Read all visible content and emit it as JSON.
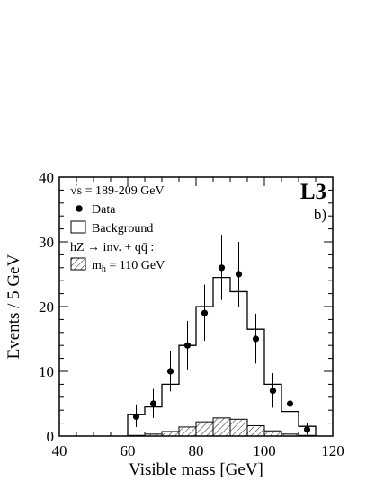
{
  "chart_data": {
    "type": "histogram",
    "xlabel": "Visible mass  [GeV]",
    "ylabel": "Events / 5 GeV",
    "xlim": [
      40,
      120
    ],
    "ylim": [
      0,
      40
    ],
    "x_ticks": [
      40,
      60,
      80,
      100,
      120
    ],
    "y_ticks": [
      0,
      10,
      20,
      30,
      40
    ],
    "x_tick_labels": [
      "40",
      "60",
      "80",
      "100",
      "120"
    ],
    "y_tick_labels": [
      "0",
      "10",
      "20",
      "30",
      "40"
    ],
    "experiment_label": "L3",
    "panel_label": "b)",
    "legend": {
      "energy_label": "√s = 189-209 GeV",
      "data_label": "Data",
      "background_label": "Background",
      "signal_process_label": "hZ → inv. + qq̄ :",
      "signal_mass_label": "m",
      "signal_mass_subscript": "h",
      "signal_mass_value": " = 110 GeV"
    },
    "background": {
      "bin_edges": [
        60,
        65,
        70,
        75,
        80,
        85,
        90,
        95,
        100,
        105,
        110,
        115
      ],
      "values": [
        3.3,
        4.5,
        8.0,
        14.0,
        20.0,
        24.5,
        22.3,
        16.5,
        8.0,
        3.8,
        1.5
      ]
    },
    "signal": {
      "bin_edges": [
        60,
        65,
        70,
        75,
        80,
        85,
        90,
        95,
        100,
        105,
        110,
        115
      ],
      "values": [
        0.1,
        0.3,
        0.7,
        1.4,
        2.2,
        2.8,
        2.6,
        1.6,
        0.8,
        0.3,
        0.1
      ]
    },
    "data": {
      "x": [
        62.5,
        67.5,
        72.5,
        77.5,
        82.5,
        87.5,
        92.5,
        97.5,
        102.5,
        107.5,
        112.5
      ],
      "y": [
        3,
        5,
        10,
        14,
        19,
        26,
        25,
        15,
        7,
        5,
        1
      ],
      "err_up": [
        1.9,
        2.3,
        3.2,
        3.8,
        4.4,
        5.1,
        5.0,
        3.9,
        2.7,
        2.3,
        1.0
      ],
      "err_down": [
        1.6,
        2.2,
        3.1,
        3.7,
        4.3,
        5.0,
        5.0,
        3.8,
        2.6,
        2.2,
        0.8
      ]
    }
  }
}
